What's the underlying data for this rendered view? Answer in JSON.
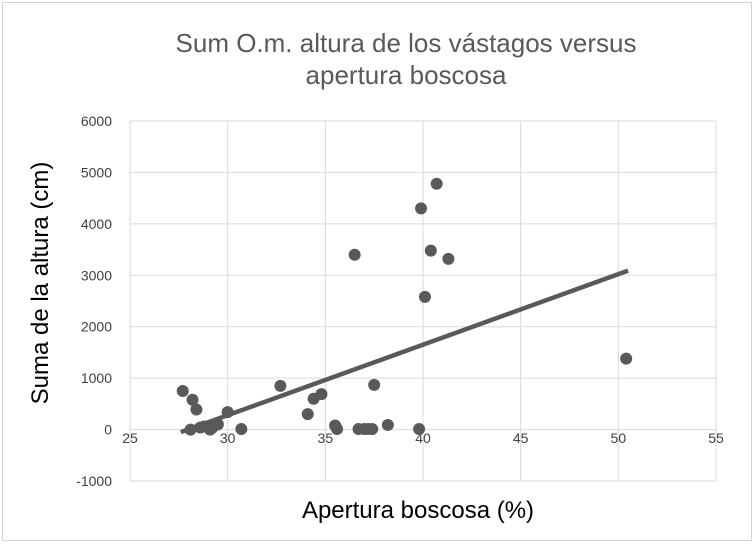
{
  "chart_data": {
    "type": "scatter",
    "title_lines": [
      "Sum O.m. altura de los vástagos versus",
      "apertura boscosa"
    ],
    "xlabel": "Apertura boscosa (%)",
    "ylabel": "Suma de la altura (cm)",
    "xlim": [
      25,
      55
    ],
    "ylim": [
      -1000,
      6000
    ],
    "x_ticks": [
      25,
      30,
      35,
      40,
      45,
      50,
      55
    ],
    "y_ticks": [
      -1000,
      0,
      1000,
      2000,
      3000,
      4000,
      5000,
      6000
    ],
    "grid": true,
    "legend": "none",
    "series": [
      {
        "points": [
          [
            27.7,
            750
          ],
          [
            28.1,
            0
          ],
          [
            28.2,
            580
          ],
          [
            28.4,
            390
          ],
          [
            28.6,
            40
          ],
          [
            28.8,
            60
          ],
          [
            29.1,
            0
          ],
          [
            29.2,
            30
          ],
          [
            29.5,
            100
          ],
          [
            30.0,
            340
          ],
          [
            30.7,
            10
          ],
          [
            32.7,
            850
          ],
          [
            34.1,
            300
          ],
          [
            34.4,
            600
          ],
          [
            34.8,
            690
          ],
          [
            35.5,
            80
          ],
          [
            35.6,
            10
          ],
          [
            36.5,
            3400
          ],
          [
            36.7,
            10
          ],
          [
            37.0,
            10
          ],
          [
            37.2,
            10
          ],
          [
            37.4,
            10
          ],
          [
            37.5,
            870
          ],
          [
            38.2,
            90
          ],
          [
            39.8,
            10
          ],
          [
            39.9,
            4300
          ],
          [
            40.1,
            2580
          ],
          [
            40.4,
            3480
          ],
          [
            40.7,
            4780
          ],
          [
            41.3,
            3320
          ],
          [
            50.4,
            1380
          ]
        ]
      }
    ],
    "trendline": {
      "x": [
        27.6,
        50.5
      ],
      "y": [
        -50,
        3090
      ]
    },
    "colors": {
      "points": "#595959",
      "trendline": "#595959",
      "grid": "#d9d9d9"
    }
  }
}
